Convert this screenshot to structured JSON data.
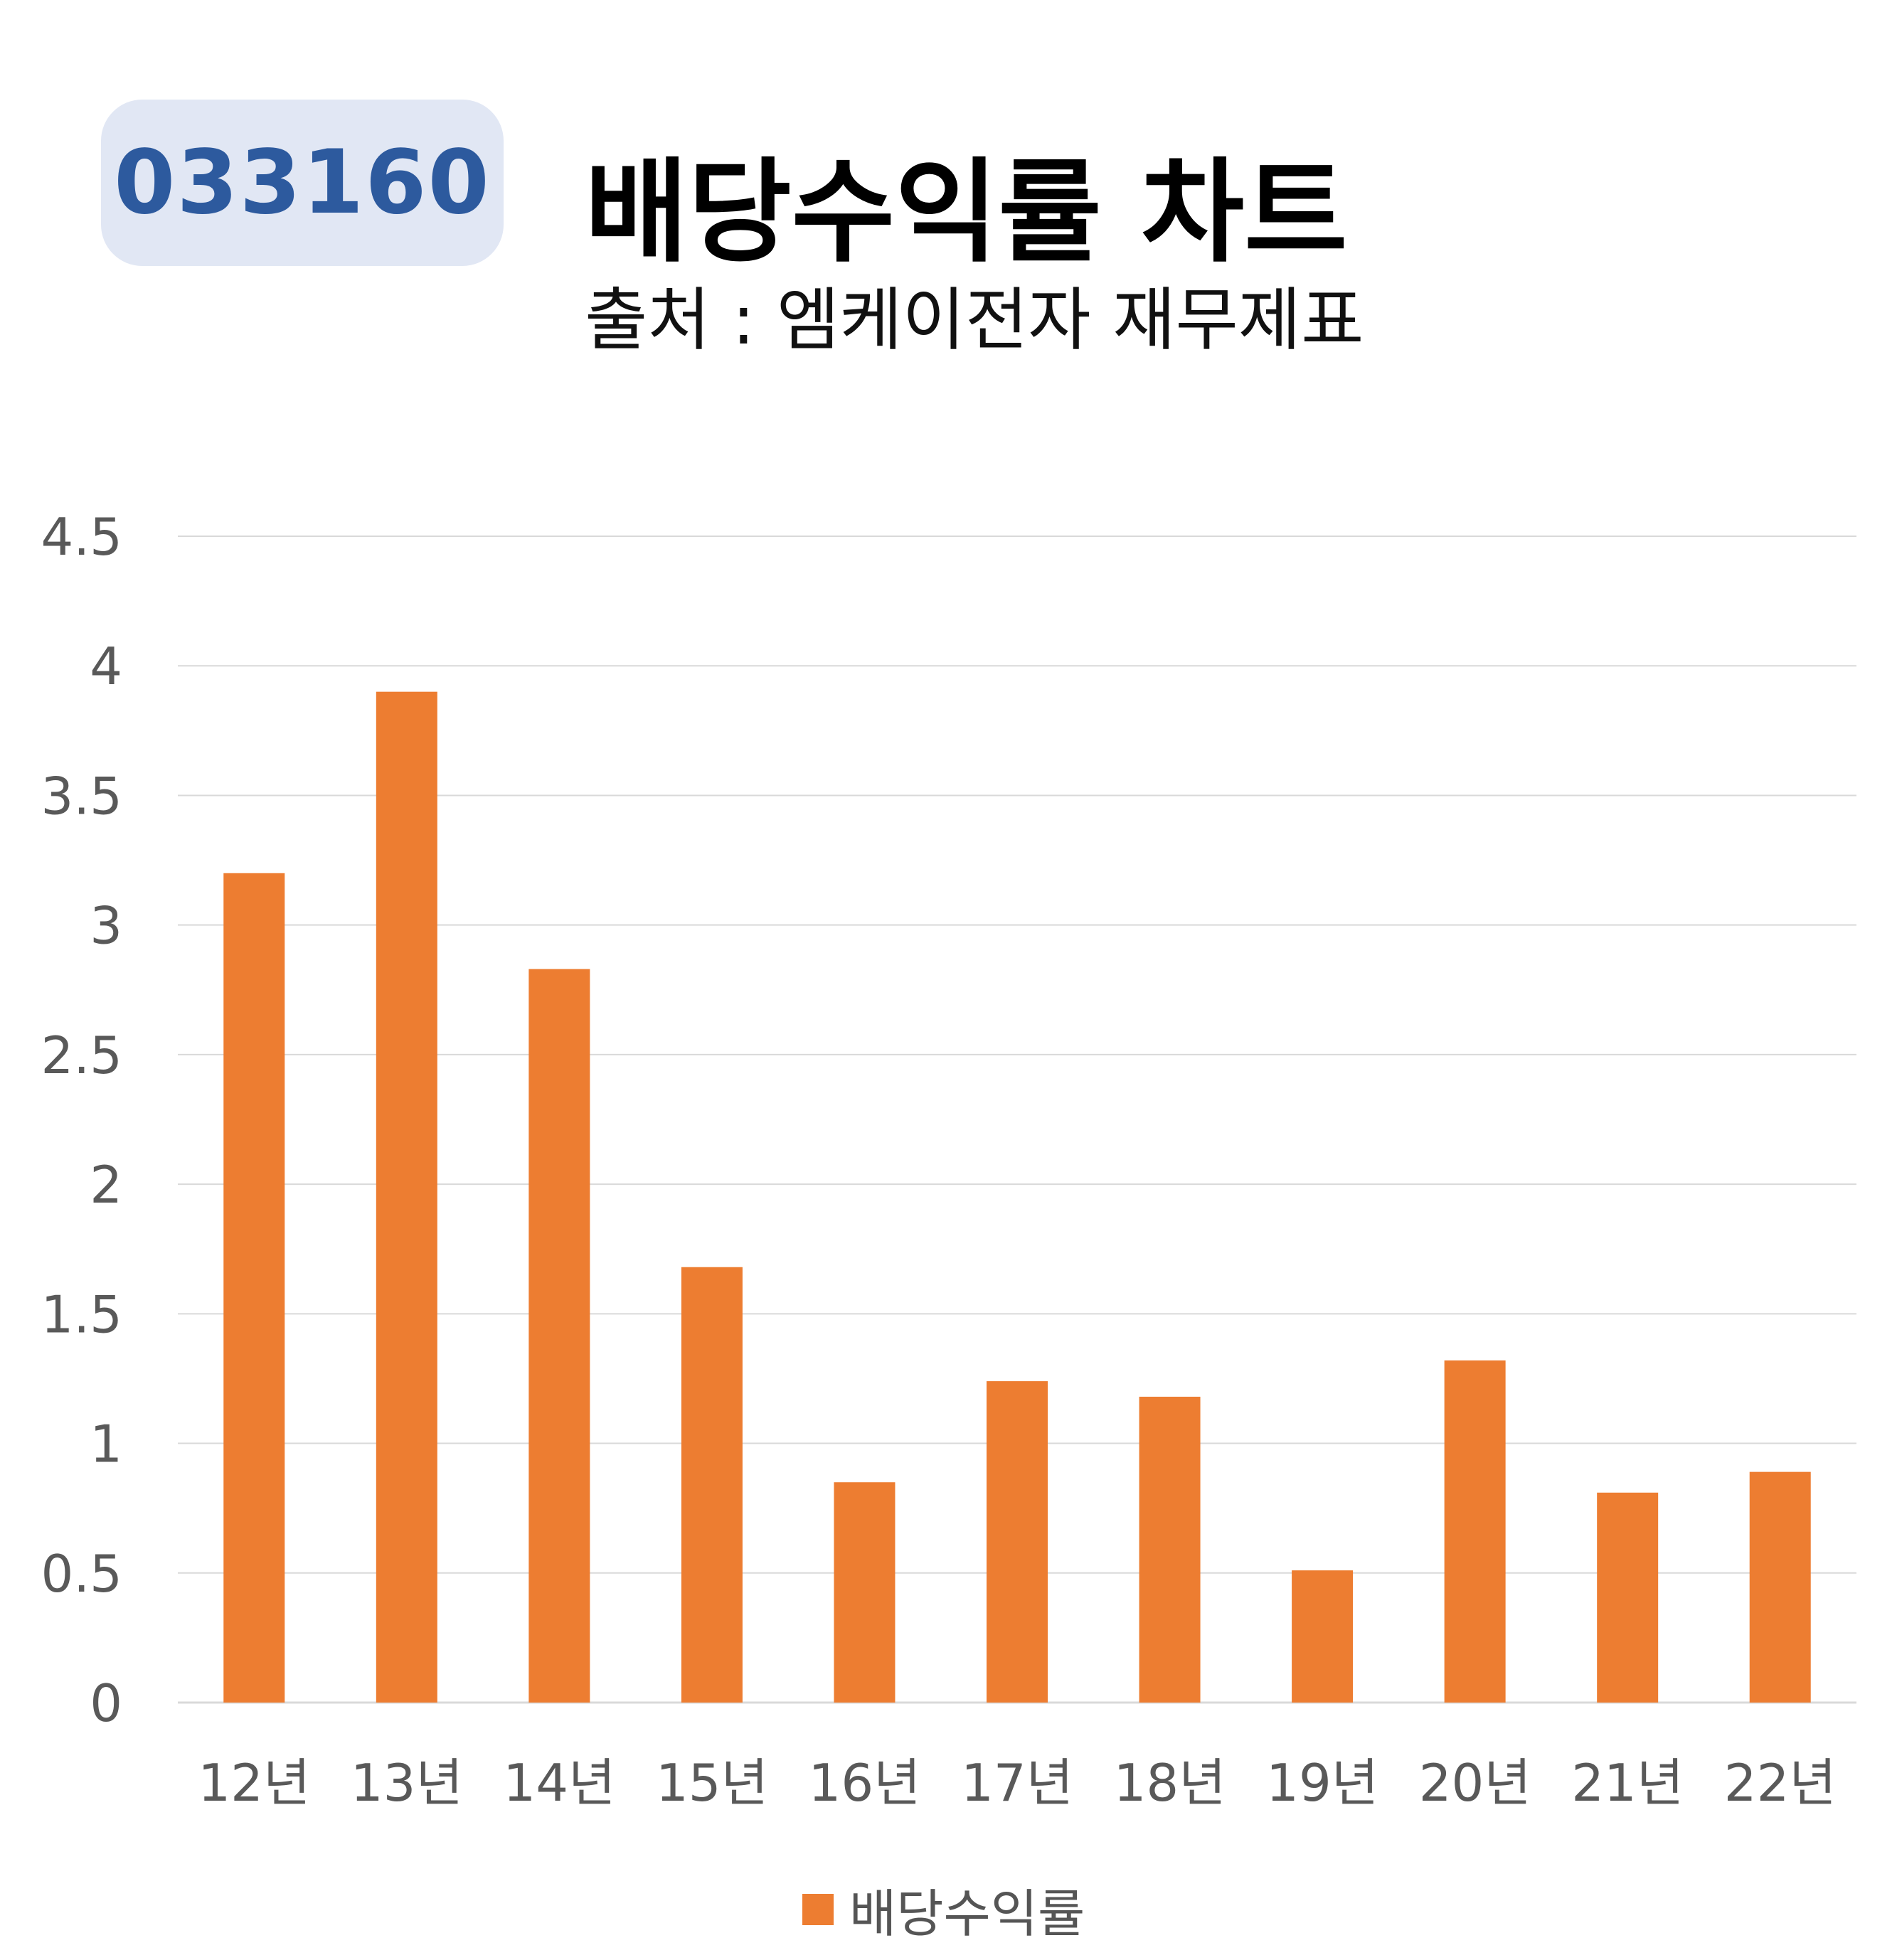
{
  "badge": {
    "code": "033160"
  },
  "header": {
    "title": "배당수익률 차트",
    "subtitle": "출처 : 엠케이전자 재무제표"
  },
  "colors": {
    "bar": "#ed7d31",
    "badge_bg": "#e1e7f4",
    "badge_text": "#2d5a9e",
    "grid": "#d9d9d9",
    "axis_text": "#595959"
  },
  "chart_data": {
    "type": "bar",
    "categories": [
      "12년",
      "13년",
      "14년",
      "15년",
      "16년",
      "17년",
      "18년",
      "19년",
      "20년",
      "21년",
      "22년"
    ],
    "series": [
      {
        "name": "배당수익률",
        "values": [
          3.2,
          3.9,
          2.83,
          1.68,
          0.85,
          1.24,
          1.18,
          0.51,
          1.32,
          0.81,
          0.89
        ]
      }
    ],
    "yticks": [
      "0",
      "0.5",
      "1",
      "1.5",
      "2",
      "2.5",
      "3",
      "3.5",
      "4",
      "4.5"
    ],
    "ylim": [
      0,
      4.5
    ],
    "grid": true,
    "legend": "bottom"
  }
}
